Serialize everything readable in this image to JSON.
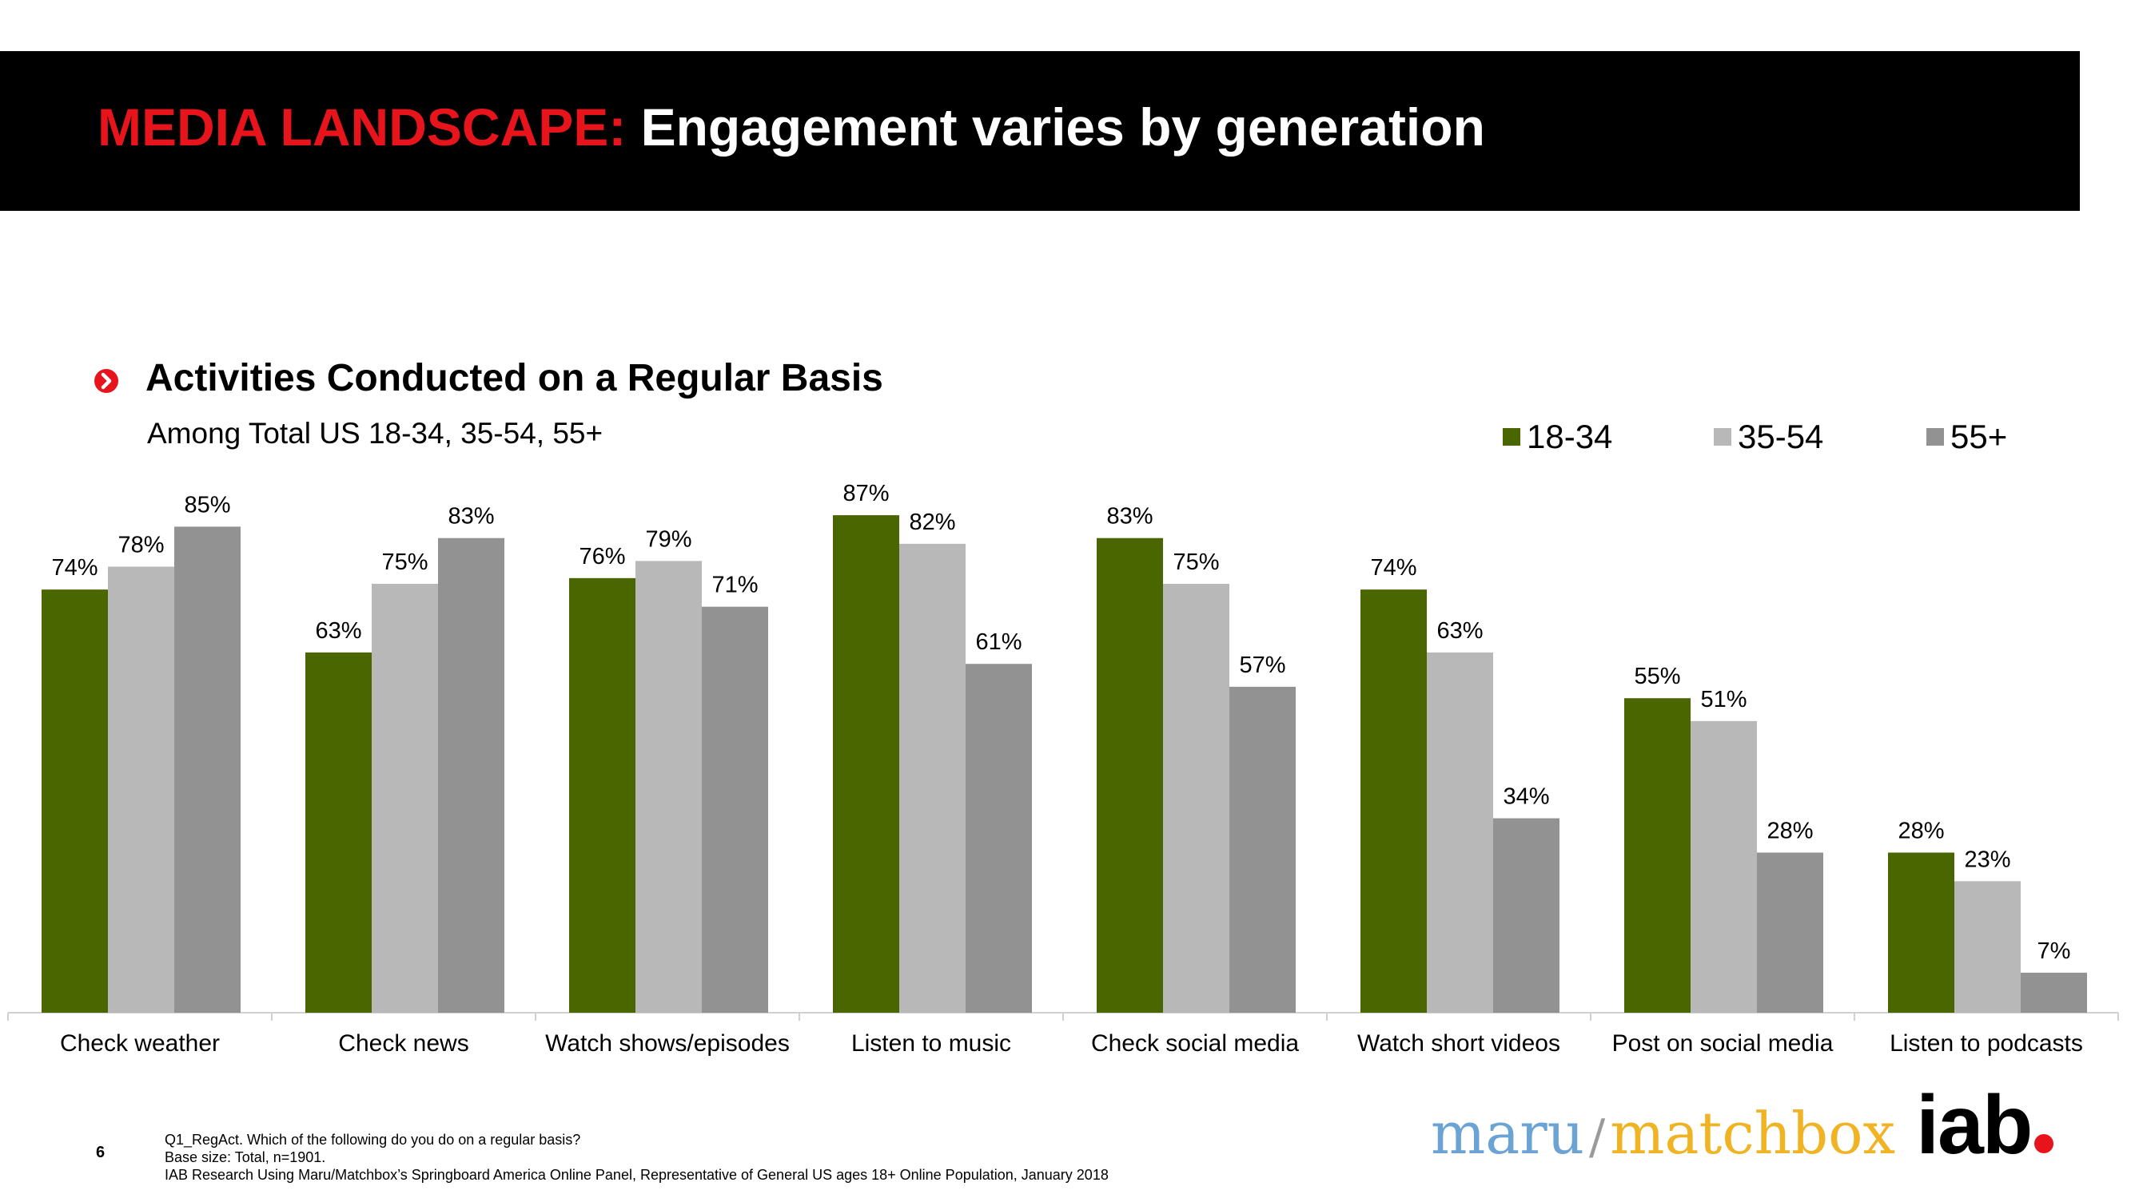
{
  "header": {
    "title_prefix": "MEDIA LANDSCAPE:",
    "title_rest": " Engagement varies by generation"
  },
  "section": {
    "title": "Activities Conducted on a Regular Basis",
    "subtitle": "Among Total US 18-34, 35-54, 55+",
    "bullet_icon": "chevron-right-icon"
  },
  "colors": {
    "accent_red": "#e8141c",
    "series_18_34": "#4a6600",
    "series_35_54": "#b8b8b8",
    "series_55": "#929292"
  },
  "chart_data": {
    "type": "bar",
    "title": "Activities Conducted on a Regular Basis",
    "subtitle": "Among Total US 18-34, 35-54, 55+",
    "categories": [
      "Check weather",
      "Check news",
      "Watch shows/episodes",
      "Listen to music",
      "Check social media",
      "Watch short videos",
      "Post on social media",
      "Listen to podcasts"
    ],
    "series": [
      {
        "name": "18-34",
        "color": "#4a6600",
        "values": [
          74,
          63,
          76,
          87,
          83,
          74,
          55,
          28
        ]
      },
      {
        "name": "35-54",
        "color": "#b8b8b8",
        "values": [
          78,
          75,
          79,
          82,
          75,
          63,
          51,
          23
        ]
      },
      {
        "name": "55+",
        "color": "#929292",
        "values": [
          85,
          83,
          71,
          61,
          57,
          34,
          28,
          7
        ]
      }
    ],
    "value_suffix": "%",
    "ylim": [
      0,
      100
    ],
    "xlabel": "",
    "ylabel": "",
    "grid": false,
    "legend_position": "top-right"
  },
  "footer": {
    "page_number": "6",
    "notes": [
      "Q1_RegAct. Which of the following do you do on a regular basis?",
      "Base size: Total, n=1901.",
      "IAB Research Using Maru/Matchbox’s Springboard America Online Panel, Representative of General US ages 18+ Online Population, January 2018"
    ]
  },
  "logos": {
    "maru": "maru",
    "slash": "/",
    "matchbox": "matchbox",
    "iab": "iab"
  }
}
